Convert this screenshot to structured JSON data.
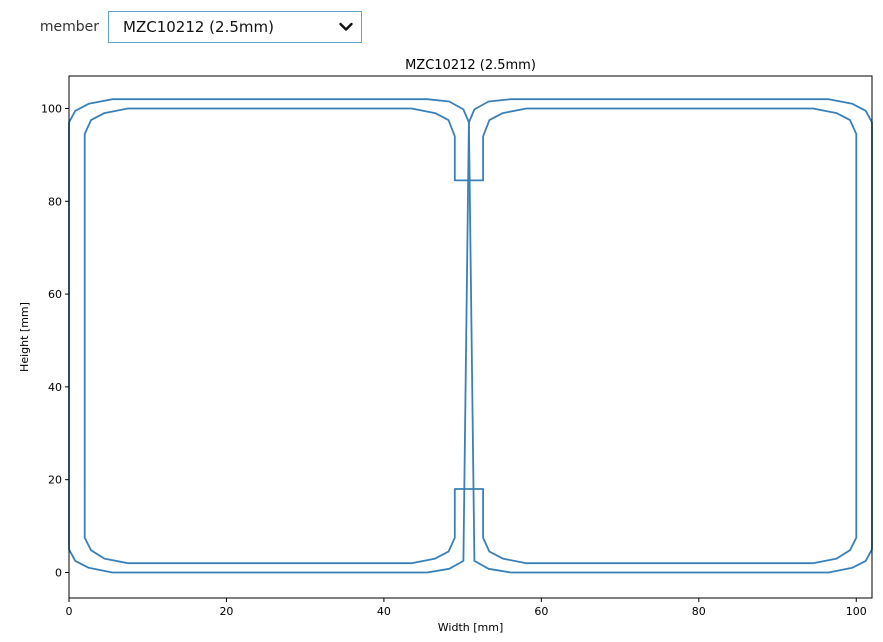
{
  "controls": {
    "member_label": "member",
    "member_selected": "MZC10212 (2.5mm)"
  },
  "colors": {
    "line": "#3a80b8",
    "axes": "#000000",
    "dropdown_border": "#60a5c9"
  },
  "icons": {
    "dropdown_arrow": "chevron-down-icon"
  },
  "chart_data": {
    "type": "line",
    "title": "MZC10212 (2.5mm)",
    "xlabel": "Width [mm]",
    "ylabel": "Height [mm]",
    "xlim": [
      0,
      102
    ],
    "ylim": [
      -5.5,
      107
    ],
    "xticks": [
      0,
      20,
      40,
      60,
      80,
      100
    ],
    "yticks": [
      0,
      20,
      40,
      60,
      80,
      100
    ],
    "grid": false,
    "legend": "none",
    "series": [
      {
        "x": [
          5.5,
          2.5,
          0.8,
          0,
          0,
          0.8,
          2.5,
          5.5,
          45.5,
          48.3,
          50.1,
          50.8,
          50.1,
          48.3,
          45.5,
          5.5
        ],
        "y": [
          0,
          1,
          2.5,
          5,
          97,
          99.5,
          101,
          102,
          102,
          101.5,
          99.8,
          97,
          2.5,
          0.8,
          0,
          0
        ]
      },
      {
        "x": [
          7.5,
          4.5,
          2.8,
          2,
          2,
          2.8,
          4.5,
          7.5,
          43.5,
          46.5,
          48.2,
          49,
          49,
          50.8
        ],
        "y": [
          2,
          3,
          4.8,
          7.5,
          94.5,
          97.5,
          99,
          100,
          100,
          99,
          97.5,
          94,
          84.5,
          84.5
        ]
      },
      {
        "x": [
          7.5,
          43.5,
          46.5,
          48.2,
          49,
          49,
          50.8
        ],
        "y": [
          2,
          2,
          3,
          4.5,
          7.5,
          18,
          18
        ]
      },
      {
        "x": [
          56.1,
          53.3,
          51.5,
          50.8,
          51.5,
          53.3,
          56.1,
          96.5,
          99.5,
          101.2,
          102,
          102,
          101.2,
          99.5,
          96.5,
          56.1
        ],
        "y": [
          102,
          101.5,
          99.8,
          97,
          2.5,
          0.8,
          0,
          0,
          1,
          2.5,
          5,
          97,
          99.5,
          101,
          102,
          102
        ]
      },
      {
        "x": [
          94.5,
          97.5,
          99.2,
          100,
          100,
          99.2,
          97.5,
          94.5,
          58.1,
          55.1,
          53.4,
          52.6,
          52.6,
          50.8
        ],
        "y": [
          2,
          3,
          4.8,
          7.5,
          94.5,
          97.5,
          99,
          100,
          100,
          99,
          97.5,
          94,
          84.5,
          84.5
        ]
      },
      {
        "x": [
          94.5,
          58.1,
          55.1,
          53.4,
          52.6,
          52.6,
          50.8
        ],
        "y": [
          2,
          2,
          3,
          4.5,
          7.5,
          18,
          18
        ]
      }
    ]
  }
}
